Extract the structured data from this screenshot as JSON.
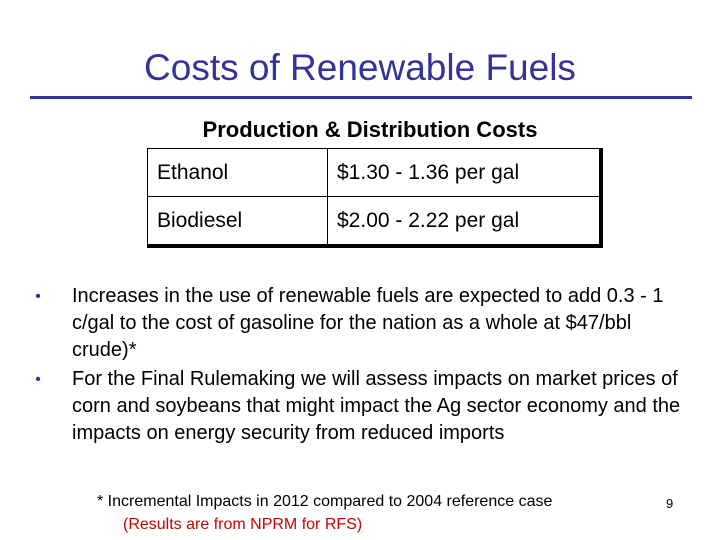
{
  "slide": {
    "title": "Costs of Renewable Fuels",
    "subtitle": "Production & Distribution Costs",
    "table": [
      {
        "fuel": "Ethanol",
        "cost": "$1.30 - 1.36 per gal"
      },
      {
        "fuel": "Biodiesel",
        "cost": "$2.00 - 2.22 per gal"
      }
    ],
    "bullets": [
      "Increases in the use of renewable fuels are expected to add 0.3 - 1 c/gal to the cost of gasoline for the nation as a whole at $47/bbl crude)*",
      "For the Final Rulemaking we will assess impacts on market prices of corn and soybeans that might impact the Ag sector economy and the impacts on energy security from reduced imports"
    ],
    "footnote": "* Incremental Impacts in 2012 compared to 2004 reference case",
    "footnote_note": "(Results are from NPRM for RFS)",
    "page_number": "9"
  },
  "colors": {
    "title": "#333399",
    "rule": "#333399",
    "note": "#cc0000"
  }
}
